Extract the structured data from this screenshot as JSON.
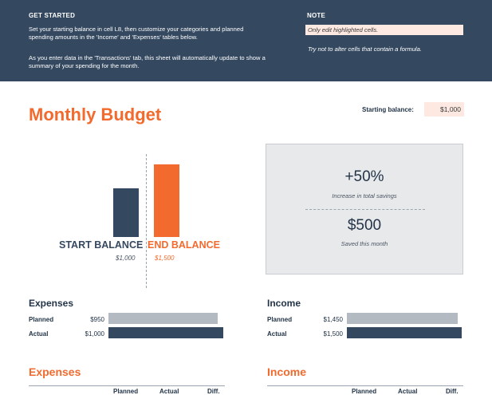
{
  "banner": {
    "get_started_title": "GET STARTED",
    "get_started_p1": "Set your starting balance in cell L8, then customize your categories and planned spending amounts in the 'Income' and 'Expenses' tables below.",
    "get_started_p2": "As you enter data in the 'Transactions' tab, this sheet will automatically update to show a summary of your spending for the month.",
    "note_title": "NOTE",
    "note_1": "Only edit highlighted cells.",
    "note_2": "Try not to alter cells that contain a formula."
  },
  "title": "Monthly Budget",
  "starting_balance": {
    "label": "Starting balance:",
    "value": "$1,000"
  },
  "balance_chart": {
    "start_label": "START BALANCE",
    "end_label": "END BALANCE",
    "start_value": "$1,000",
    "end_value": "$1,500",
    "start_amount": 1000,
    "end_amount": 1500
  },
  "summary": {
    "savings_pct": "+50%",
    "savings_pct_caption": "Increase in total savings",
    "saved": "$500",
    "saved_caption": "Saved this month"
  },
  "expenses_summary": {
    "heading": "Expenses",
    "planned_label": "Planned",
    "planned_value": "$950",
    "planned_amount": 950,
    "actual_label": "Actual",
    "actual_value": "$1,000",
    "actual_amount": 1000
  },
  "income_summary": {
    "heading": "Income",
    "planned_label": "Planned",
    "planned_value": "$1,450",
    "planned_amount": 1450,
    "actual_label": "Actual",
    "actual_value": "$1,500",
    "actual_amount": 1500
  },
  "expenses_table": {
    "heading": "Expenses",
    "col_planned": "Planned",
    "col_actual": "Actual",
    "col_diff": "Diff."
  },
  "income_table": {
    "heading": "Income",
    "col_planned": "Planned",
    "col_actual": "Actual",
    "col_diff": "Diff."
  },
  "colors": {
    "navy": "#344860",
    "orange": "#f26a2e",
    "gray_bar": "#b4bac2",
    "highlight": "#fde9e2"
  }
}
